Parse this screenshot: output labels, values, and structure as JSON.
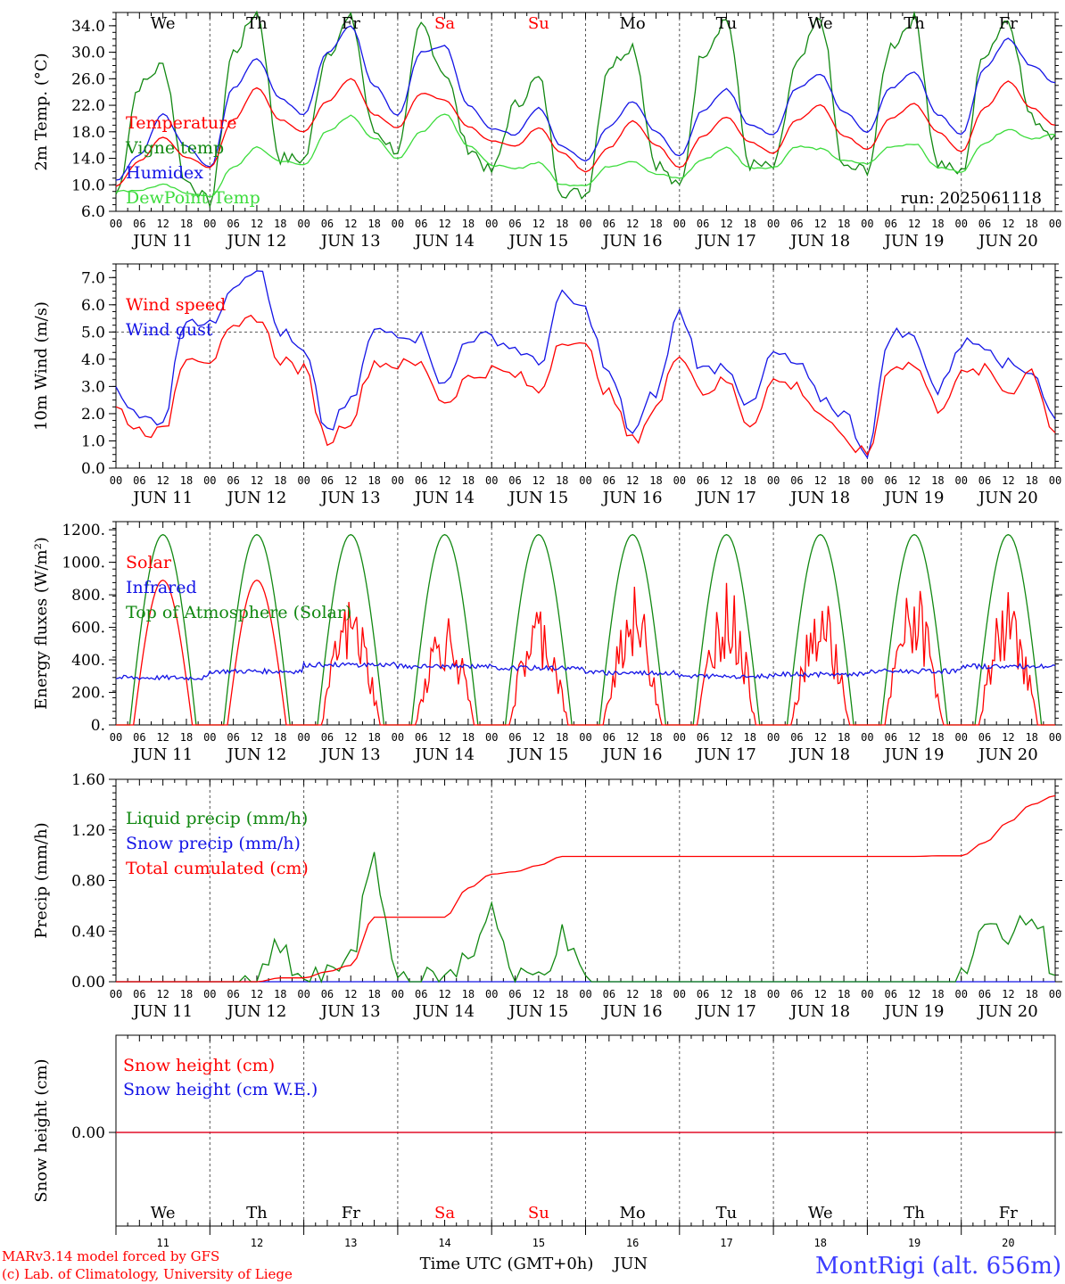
{
  "colors": {
    "red": "#ff0000",
    "darkgreen": "#118811",
    "blue": "#1414e6",
    "lightgreen": "#3cdc3c",
    "black": "#000000",
    "gridgray": "#555555",
    "station": "#3c3cff"
  },
  "days": [
    "We",
    "Th",
    "Fr",
    "Sa",
    "Su",
    "Mo",
    "Tu",
    "We",
    "Th",
    "Fr"
  ],
  "weekend_days": [
    3,
    4
  ],
  "date_labels": [
    "JUN 11",
    "JUN 12",
    "JUN 13",
    "JUN 14",
    "JUN 15",
    "JUN 16",
    "JUN 17",
    "JUN 18",
    "JUN 19",
    "JUN 20"
  ],
  "hour_labels": [
    "00",
    "06",
    "12",
    "18"
  ],
  "bottom_day_numbers": [
    "11",
    "12",
    "13",
    "14",
    "15",
    "16",
    "17",
    "18",
    "19",
    "20"
  ],
  "footer": {
    "credit_line1": "MARv3.14 model forced by GFS",
    "credit_line2": "(c) Lab. of Climatology, University of Liege",
    "xlabel": "Time UTC (GMT+0h)",
    "month": "JUN",
    "station": "MontRigi (alt. 656m)"
  },
  "chart_data": [
    {
      "type": "line",
      "ylabel": "2m Temp. (°C)",
      "ylim": [
        6,
        36
      ],
      "yticks": [
        "6.0",
        "10.0",
        "14.0",
        "18.0",
        "22.0",
        "26.0",
        "30.0",
        "34.0"
      ],
      "run_label": "run: 2025061118",
      "x_hours": [
        0,
        6,
        12,
        18,
        24,
        30,
        36,
        42,
        48,
        54,
        60,
        66,
        72,
        78,
        84,
        90,
        96,
        102,
        108,
        114,
        120,
        126,
        132,
        138,
        144,
        150,
        156,
        162,
        168,
        174,
        180,
        186,
        192,
        198,
        204,
        210,
        216,
        222,
        228,
        234,
        240
      ],
      "series": [
        {
          "name": "Temperature",
          "color": "red",
          "values": [
            9.8,
            13.6,
            17.2,
            14.2,
            12.6,
            19.8,
            24.6,
            19.8,
            18.0,
            22.6,
            26.0,
            20.6,
            18.6,
            23.8,
            22.8,
            18.8,
            16.6,
            15.8,
            18.6,
            14.8,
            12.0,
            15.6,
            19.6,
            16.0,
            12.6,
            17.4,
            20.2,
            16.4,
            14.8,
            19.8,
            22.0,
            17.4,
            15.4,
            20.0,
            22.2,
            18.0,
            15.0,
            21.6,
            25.6,
            21.6,
            19.0
          ]
        },
        {
          "name": "Vigne temp",
          "color": "darkgreen",
          "values": [
            8.6,
            25.0,
            28.0,
            10.5,
            7.5,
            30.0,
            36.0,
            14.0,
            13.8,
            30.0,
            35.0,
            18.0,
            15.2,
            34.0,
            27.0,
            15.6,
            12.0,
            22.0,
            26.0,
            9.0,
            8.6,
            28.0,
            31.0,
            13.2,
            9.6,
            30.0,
            35.0,
            13.0,
            12.6,
            28.0,
            35.0,
            12.4,
            12.4,
            31.0,
            35.0,
            13.2,
            11.8,
            30.0,
            35.0,
            20.0,
            17.6
          ]
        },
        {
          "name": "Humidex",
          "color": "blue",
          "values": [
            10.6,
            14.6,
            20.6,
            15.8,
            12.6,
            24.6,
            29.0,
            23.0,
            20.6,
            30.0,
            34.0,
            25.0,
            20.4,
            30.0,
            31.0,
            22.0,
            18.4,
            17.6,
            21.6,
            15.8,
            13.6,
            18.8,
            22.6,
            18.0,
            14.4,
            21.2,
            24.4,
            19.0,
            17.6,
            24.6,
            26.6,
            21.0,
            18.0,
            24.6,
            27.0,
            20.6,
            17.6,
            27.6,
            32.0,
            28.0,
            25.4
          ]
        },
        {
          "name": "DewPoint Temp",
          "color": "lightgreen",
          "values": [
            9.0,
            9.2,
            10.0,
            8.8,
            8.2,
            12.6,
            15.6,
            13.6,
            13.0,
            18.0,
            20.4,
            17.0,
            14.0,
            18.0,
            20.8,
            16.0,
            13.0,
            12.4,
            13.4,
            10.0,
            10.0,
            12.8,
            13.6,
            11.6,
            11.0,
            13.8,
            15.6,
            12.6,
            12.6,
            15.8,
            15.4,
            13.6,
            13.2,
            15.8,
            16.2,
            12.6,
            12.0,
            16.4,
            18.4,
            17.0,
            17.6
          ]
        }
      ]
    },
    {
      "type": "line",
      "ylabel": "10m Wind (m/s)",
      "ylim": [
        0,
        7.5
      ],
      "yticks": [
        "0.0",
        "1.0",
        "2.0",
        "3.0",
        "4.0",
        "5.0",
        "6.0",
        "7.0"
      ],
      "reference_line": 5.0,
      "x_hours": [
        0,
        6,
        12,
        18,
        24,
        30,
        36,
        42,
        48,
        54,
        60,
        66,
        72,
        78,
        84,
        90,
        96,
        102,
        108,
        114,
        120,
        126,
        132,
        138,
        144,
        150,
        156,
        162,
        168,
        174,
        180,
        186,
        192,
        198,
        204,
        210,
        216,
        222,
        228,
        234,
        240
      ],
      "series": [
        {
          "name": "Wind speed",
          "color": "red",
          "values": [
            2.2,
            1.4,
            1.3,
            4.2,
            4.0,
            5.0,
            5.6,
            4.0,
            3.6,
            1.0,
            1.8,
            3.9,
            3.8,
            3.8,
            2.4,
            3.3,
            3.6,
            3.4,
            2.8,
            4.8,
            4.4,
            2.7,
            1.0,
            2.2,
            4.3,
            2.8,
            3.2,
            1.6,
            3.2,
            3.0,
            2.0,
            1.0,
            0.5,
            3.8,
            3.8,
            2.2,
            3.4,
            3.6,
            2.8,
            3.6,
            1.3
          ]
        },
        {
          "name": "Wind gust",
          "color": "blue",
          "values": [
            3.0,
            1.8,
            1.8,
            5.6,
            5.2,
            6.8,
            7.4,
            5.0,
            4.2,
            1.4,
            2.4,
            5.0,
            5.0,
            4.8,
            3.0,
            4.8,
            4.8,
            4.4,
            3.8,
            6.3,
            5.8,
            3.4,
            1.3,
            2.8,
            5.7,
            3.6,
            3.8,
            2.2,
            4.2,
            3.8,
            2.6,
            2.0,
            0.6,
            5.0,
            4.8,
            2.8,
            4.6,
            4.6,
            3.8,
            3.6,
            1.8
          ]
        }
      ]
    },
    {
      "type": "line",
      "ylabel": "Energy fluxes (W/m²)",
      "ylim": [
        0,
        1250
      ],
      "yticks": [
        "0.",
        "200.",
        "400.",
        "600.",
        "800.",
        "1000.",
        "1200."
      ],
      "peaks": {
        "toa": [
          1170,
          1170,
          1170,
          1170,
          1170,
          1170,
          1170,
          1170,
          1170,
          1170
        ],
        "solar": [
          890,
          890,
          800,
          720,
          770,
          860,
          900,
          840,
          880,
          830
        ],
        "infrared_mean": [
          290,
          330,
          370,
          360,
          350,
          320,
          300,
          310,
          330,
          360
        ]
      },
      "series": [
        {
          "name": "Solar",
          "color": "red"
        },
        {
          "name": "Infrared",
          "color": "blue"
        },
        {
          "name": "Top of Atmosphere (Solar)",
          "color": "darkgreen"
        }
      ]
    },
    {
      "type": "line",
      "ylabel": "Precip (mm/h)",
      "ylim": [
        0,
        1.6
      ],
      "yticks": [
        "0.00",
        "0.40",
        "0.80",
        "1.20",
        "1.60"
      ],
      "x_hours": [
        0,
        6,
        12,
        18,
        24,
        30,
        36,
        42,
        48,
        54,
        60,
        66,
        72,
        78,
        84,
        90,
        96,
        102,
        108,
        114,
        120,
        126,
        132,
        138,
        144,
        150,
        156,
        162,
        168,
        174,
        180,
        186,
        192,
        198,
        204,
        210,
        216,
        222,
        228,
        234,
        240
      ],
      "series": [
        {
          "name": "Liquid precip (mm/h)",
          "color": "darkgreen",
          "values": [
            0,
            0,
            0,
            0,
            0,
            0,
            0,
            0.25,
            0,
            0.02,
            0.25,
            0.9,
            0.05,
            0,
            0,
            0.2,
            0.6,
            0,
            0.05,
            0.35,
            0,
            0,
            0,
            0,
            0,
            0,
            0,
            0,
            0,
            0,
            0,
            0,
            0,
            0,
            0,
            0,
            0,
            0.4,
            0.4,
            0.6,
            0.05
          ]
        },
        {
          "name": "Snow precip (mm/h)",
          "color": "blue",
          "values": [
            0,
            0,
            0,
            0,
            0,
            0,
            0,
            0,
            0,
            0,
            0,
            0,
            0,
            0,
            0,
            0,
            0,
            0,
            0,
            0,
            0,
            0,
            0,
            0,
            0,
            0,
            0,
            0,
            0,
            0,
            0,
            0,
            0,
            0,
            0,
            0,
            0,
            0,
            0,
            0,
            0
          ]
        },
        {
          "name": "Total cumulated (cm)",
          "color": "red",
          "values": [
            0,
            0,
            0,
            0,
            0,
            0,
            0,
            0.03,
            0.03,
            0.08,
            0.13,
            0.51,
            0.51,
            0.51,
            0.51,
            0.74,
            0.85,
            0.87,
            0.92,
            0.99,
            0.99,
            0.99,
            0.99,
            0.99,
            0.99,
            0.99,
            0.99,
            0.99,
            0.99,
            0.99,
            0.99,
            0.99,
            0.99,
            0.99,
            0.99,
            0.995,
            0.995,
            1.1,
            1.26,
            1.4,
            1.47
          ]
        }
      ]
    },
    {
      "type": "line",
      "ylabel": "Snow height (cm)",
      "ytick_label": "0.00",
      "series": [
        {
          "name": "Snow height (cm)",
          "color": "red",
          "values": [
            0,
            0
          ]
        },
        {
          "name": "Snow height (cm W.E.)",
          "color": "blue",
          "values": [
            0,
            0
          ]
        }
      ]
    }
  ]
}
